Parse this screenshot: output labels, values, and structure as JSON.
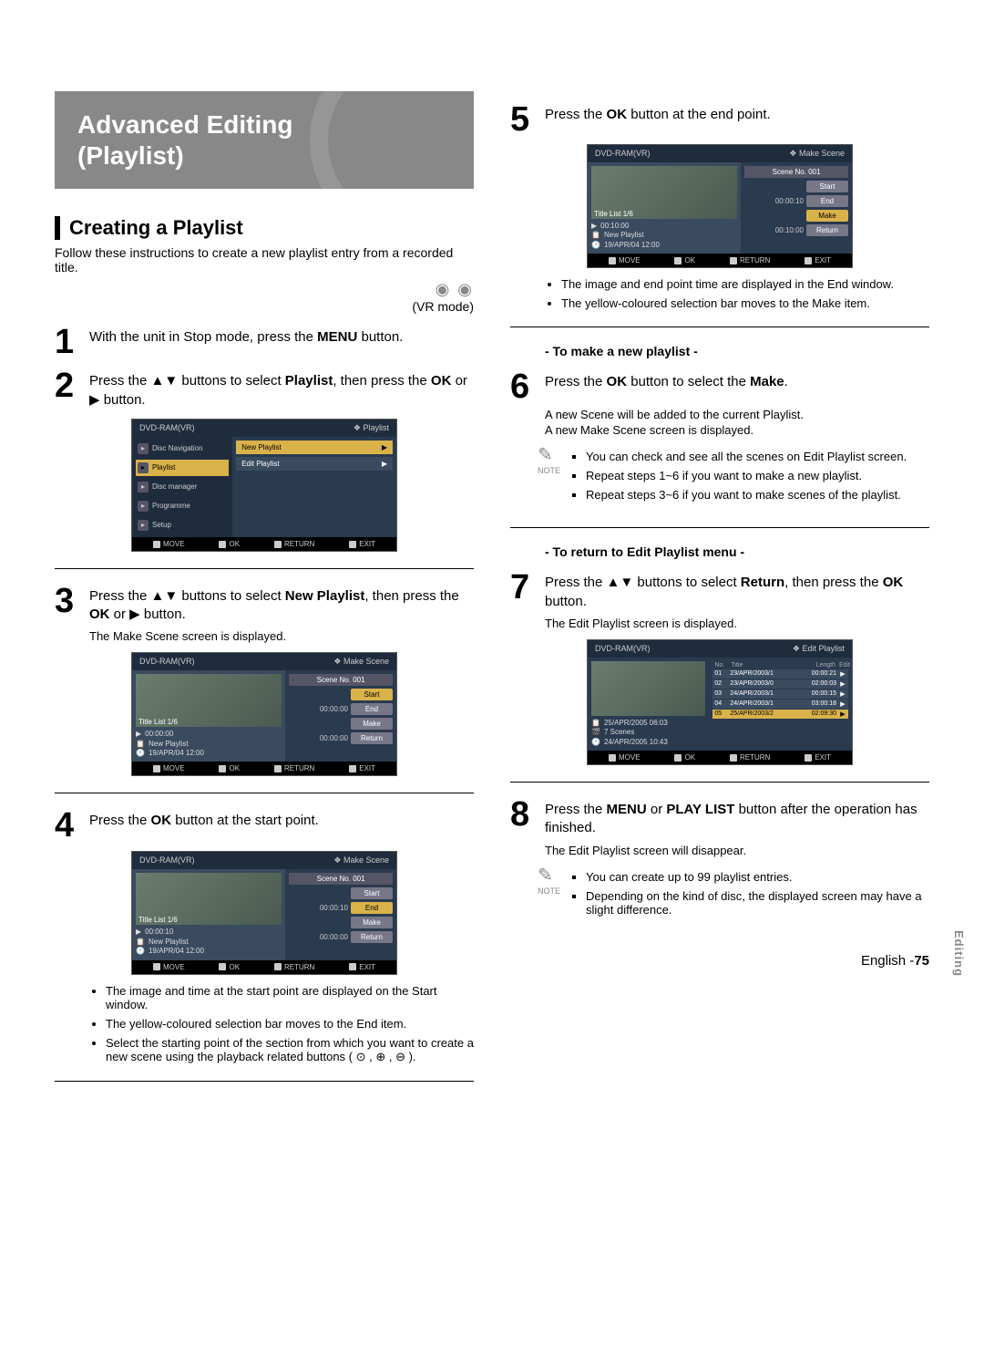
{
  "title_block": {
    "line1": "Advanced Editing",
    "line2": "(Playlist)"
  },
  "section_heading": "Creating a Playlist",
  "intro": "Follow these instructions to create a new playlist entry from a recorded title.",
  "vr_mode": "(VR mode)",
  "steps": {
    "s1": {
      "num": "1",
      "text_before": "With the unit in Stop mode, press the ",
      "bold": "MENU",
      "text_after": " button."
    },
    "s2": {
      "num": "2",
      "part1": "Press the ▲▼ buttons to select ",
      "bold1": "Playlist",
      "part2": ", then press the ",
      "bold2": "OK",
      "part3": " or ▶ button."
    },
    "s3": {
      "num": "3",
      "part1": "Press the ▲▼ buttons to select ",
      "bold1": "New Playlist",
      "part2": ", then press the ",
      "bold2": "OK",
      "part3": " or ▶ button.",
      "sub": "The Make Scene screen is displayed."
    },
    "s4": {
      "num": "4",
      "part1": "Press the ",
      "bold1": "OK",
      "part2": " button at the start point."
    },
    "s4_bullets": [
      "The image and time at the start point are displayed on the Start window.",
      "The yellow-coloured selection bar moves to the End item.",
      "Select the starting point of the section from which you want to create a new scene using the playback related buttons ( ⊙ , ⊕ , ⊖ )."
    ],
    "s5": {
      "num": "5",
      "part1": "Press the ",
      "bold1": "OK",
      "part2": " button at the end point."
    },
    "s5_bullets": [
      "The image and end point time are displayed in the End window.",
      "The yellow-coloured selection bar moves to the Make item."
    ],
    "sub6_head": "- To make a new playlist -",
    "s6": {
      "num": "6",
      "part1": "Press the ",
      "bold1": "OK",
      "part2": " button to select the ",
      "bold2": "Make",
      "part3": ".",
      "sub1": "A new Scene will be added to the current Playlist.",
      "sub2": "A new Make Scene screen is displayed."
    },
    "note6": [
      "You can check and see all the scenes on Edit Playlist screen.",
      "Repeat steps 1~6 if you want to make a new playlist.",
      "Repeat steps 3~6 if you want to make scenes of the playlist."
    ],
    "sub7_head": "- To return to Edit Playlist menu -",
    "s7": {
      "num": "7",
      "part1": "Press the ▲▼ buttons to select ",
      "bold1": "Return",
      "part2": ", then press the ",
      "bold2": "OK",
      "part3": " button.",
      "sub": "The Edit Playlist screen is displayed."
    },
    "s8": {
      "num": "8",
      "part1": "Press the ",
      "bold1": "MENU",
      "part2": " or ",
      "bold2": "PLAY LIST",
      "part3": " button after the operation has finished.",
      "sub": "The Edit Playlist screen will disappear."
    },
    "note8": [
      "You can create up to 99 playlist entries.",
      "Depending on the kind of disc, the displayed screen may have a slight difference."
    ]
  },
  "osd": {
    "top_left": "DVD-RAM(VR)",
    "footer": {
      "move": "MOVE",
      "ok": "OK",
      "return": "RETURN",
      "exit": "EXIT"
    },
    "menu": {
      "top_right": "Playlist",
      "left": [
        {
          "label": "Disc Navigation"
        },
        {
          "label": "Playlist",
          "sel": true
        },
        {
          "label": "Disc manager"
        },
        {
          "label": "Programme"
        },
        {
          "label": "Setup"
        }
      ],
      "right": [
        {
          "label": "New Playlist",
          "sel": true
        },
        {
          "label": "Edit Playlist"
        }
      ]
    },
    "scene": {
      "top_right": "Make Scene",
      "scene_no": "Scene No. 001",
      "title_list": "Title List  1/6",
      "playlist_name": "New Playlist",
      "date": "19/APR/04 12:00",
      "btn_start": "Start",
      "btn_end": "End",
      "btn_make": "Make",
      "btn_return": "Return",
      "t0": "00:00:00",
      "t1": "00:00:10",
      "t2": "00:10:00",
      "counter": "00:00:10",
      "counter0": "00:00:00"
    },
    "edit": {
      "top_right": "Edit Playlist",
      "hdr_no": "No.",
      "hdr_title": "Title",
      "hdr_len": "Length",
      "hdr_edit": "Edit",
      "rows": [
        {
          "no": "01",
          "title": "23/APR/2003/1",
          "len": "00:00:21"
        },
        {
          "no": "02",
          "title": "23/APR/2003/0",
          "len": "02:00:03"
        },
        {
          "no": "03",
          "title": "24/APR/2003/1",
          "len": "00:00:15"
        },
        {
          "no": "04",
          "title": "24/APR/2003/1",
          "len": "03:00:18"
        },
        {
          "no": "05",
          "title": "25/APR/2003/2",
          "len": "02:09:30"
        }
      ],
      "info1": "25/APR/2005 06:03",
      "info2": "7 Scenes",
      "info3": "24/APR/2005 10:43"
    }
  },
  "note_label": "NOTE",
  "side_tab": "Editing",
  "footer_lang": "English -",
  "footer_page": "75"
}
